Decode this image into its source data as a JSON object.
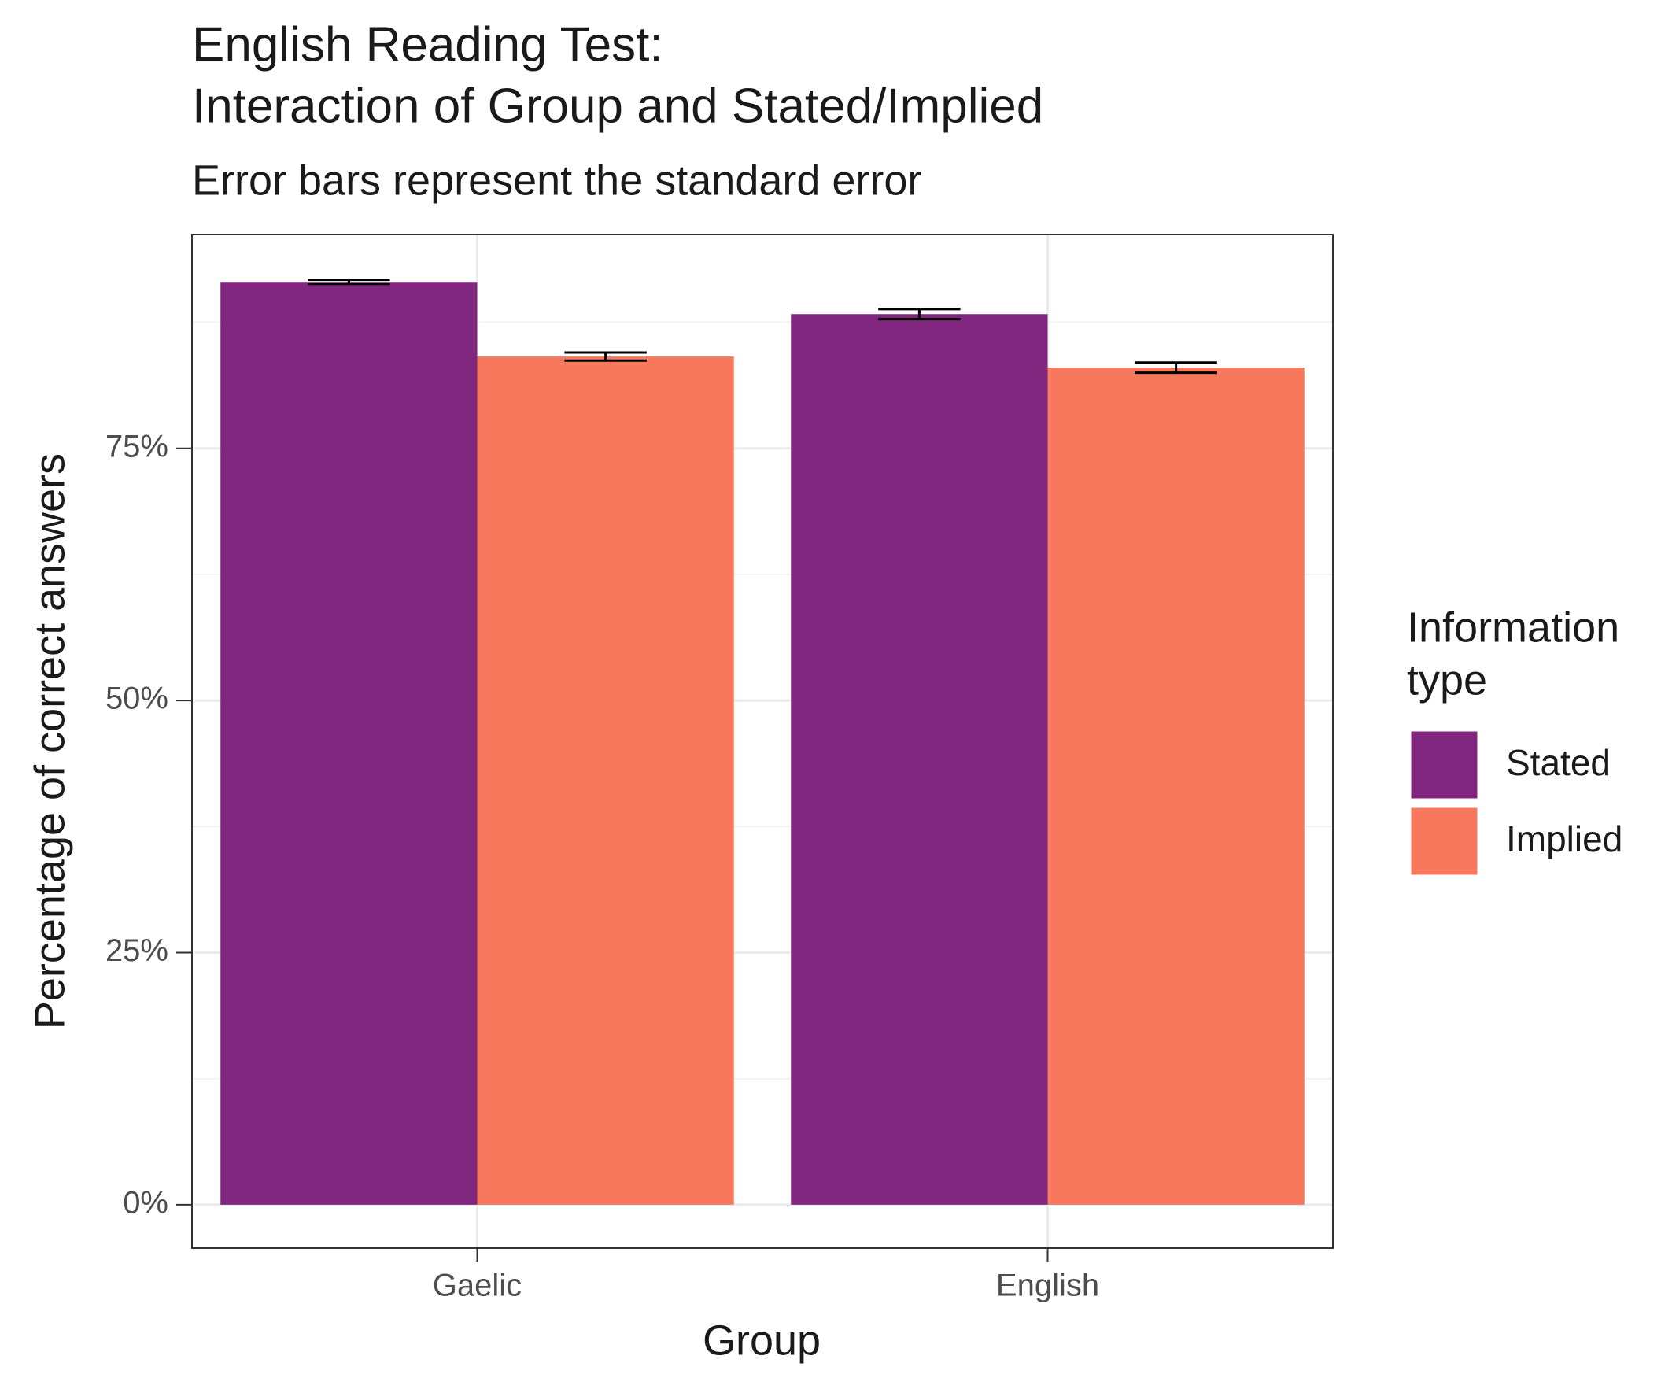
{
  "chart_data": {
    "type": "bar",
    "title": [
      "English Reading Test:",
      "Interaction of Group and Stated/Implied"
    ],
    "subtitle": "Error bars represent the standard error",
    "x_label": "Group",
    "y_label": "Percentage of correct answers",
    "legend_title": [
      "Information",
      "type"
    ],
    "legend_position": "right",
    "grid": true,
    "categories": [
      "Gaelic",
      "English"
    ],
    "series": [
      {
        "name": "Stated",
        "color": "#80267e",
        "values": [
          91.5,
          88.3
        ],
        "errors": [
          0.2,
          0.5
        ]
      },
      {
        "name": "Implied",
        "color": "#f7785c",
        "values": [
          84.1,
          83.0
        ],
        "errors": [
          0.4,
          0.5
        ]
      }
    ],
    "ylim": [
      -4.3,
      96.2
    ],
    "yticks": [
      {
        "value": 0,
        "label": "0%"
      },
      {
        "value": 25,
        "label": "25%"
      },
      {
        "value": 50,
        "label": "50%"
      },
      {
        "value": 75,
        "label": "75%"
      }
    ]
  }
}
